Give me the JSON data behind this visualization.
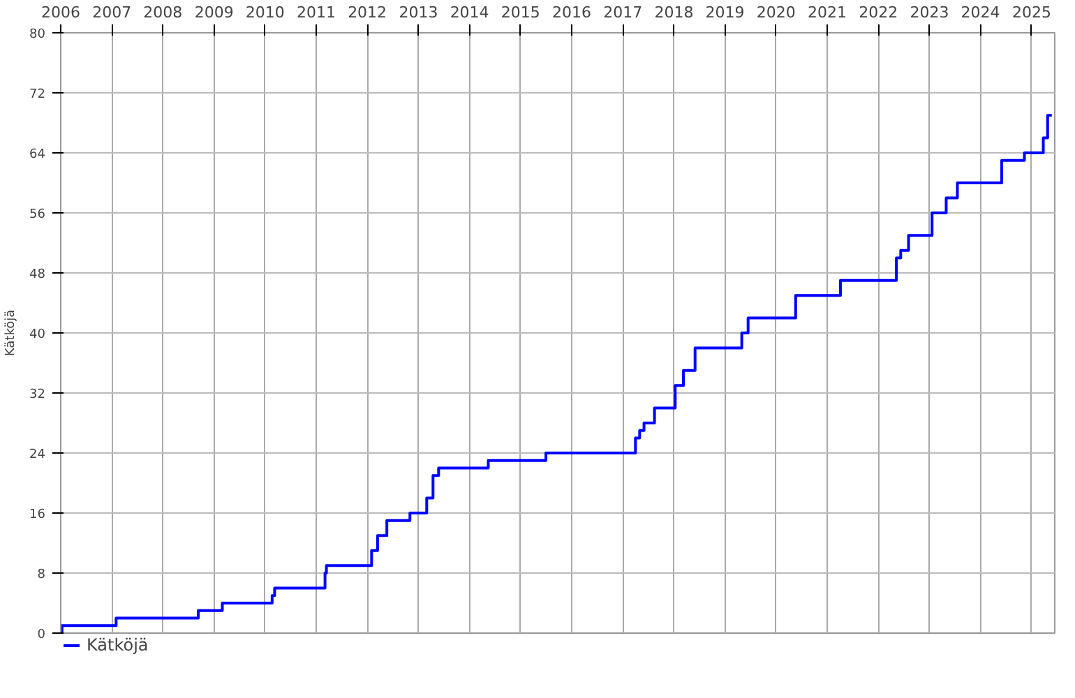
{
  "chart_data": {
    "type": "step",
    "ylabel": "Kätköjä",
    "x": [
      "2006-01-01",
      "2006-01-10",
      "2007-02-01",
      "2008-09-10",
      "2009-03-01",
      "2010-02-20",
      "2010-03-10",
      "2011-03-05",
      "2011-03-15",
      "2012-02-01",
      "2012-03-15",
      "2012-05-20",
      "2012-11-01",
      "2013-03-01",
      "2013-04-15",
      "2013-05-25",
      "2014-05-15",
      "2015-07-01",
      "2017-04-01",
      "2017-05-01",
      "2017-06-01",
      "2017-08-15",
      "2018-01-10",
      "2018-03-10",
      "2018-06-01",
      "2019-05-01",
      "2019-06-15",
      "2020-05-20",
      "2021-04-05",
      "2022-05-10",
      "2022-06-10",
      "2022-08-05",
      "2023-01-20",
      "2023-05-01",
      "2023-07-20",
      "2024-06-01",
      "2024-11-10",
      "2025-03-25",
      "2025-04-25",
      "2025-05-25"
    ],
    "series": [
      {
        "name": "Kätköjä",
        "color": "#0000ff",
        "values": [
          0,
          1,
          2,
          3,
          4,
          5,
          6,
          8,
          9,
          11,
          13,
          15,
          16,
          18,
          21,
          22,
          23,
          24,
          26,
          27,
          28,
          30,
          33,
          35,
          38,
          40,
          42,
          45,
          47,
          50,
          51,
          53,
          56,
          58,
          60,
          63,
          64,
          66,
          69,
          69
        ]
      }
    ],
    "xlim": [
      "2006-01-01",
      "2025-06-15"
    ],
    "xticks": [
      "2006",
      "2007",
      "2008",
      "2009",
      "2010",
      "2011",
      "2012",
      "2013",
      "2014",
      "2015",
      "2016",
      "2017",
      "2018",
      "2019",
      "2020",
      "2021",
      "2022",
      "2023",
      "2024",
      "2025"
    ],
    "ylim": [
      0,
      80
    ],
    "yticks": [
      0,
      8,
      16,
      24,
      32,
      40,
      48,
      56,
      64,
      72,
      80
    ],
    "grid": true,
    "legend": "bottom left",
    "marker": "none",
    "line_style": "solid"
  }
}
